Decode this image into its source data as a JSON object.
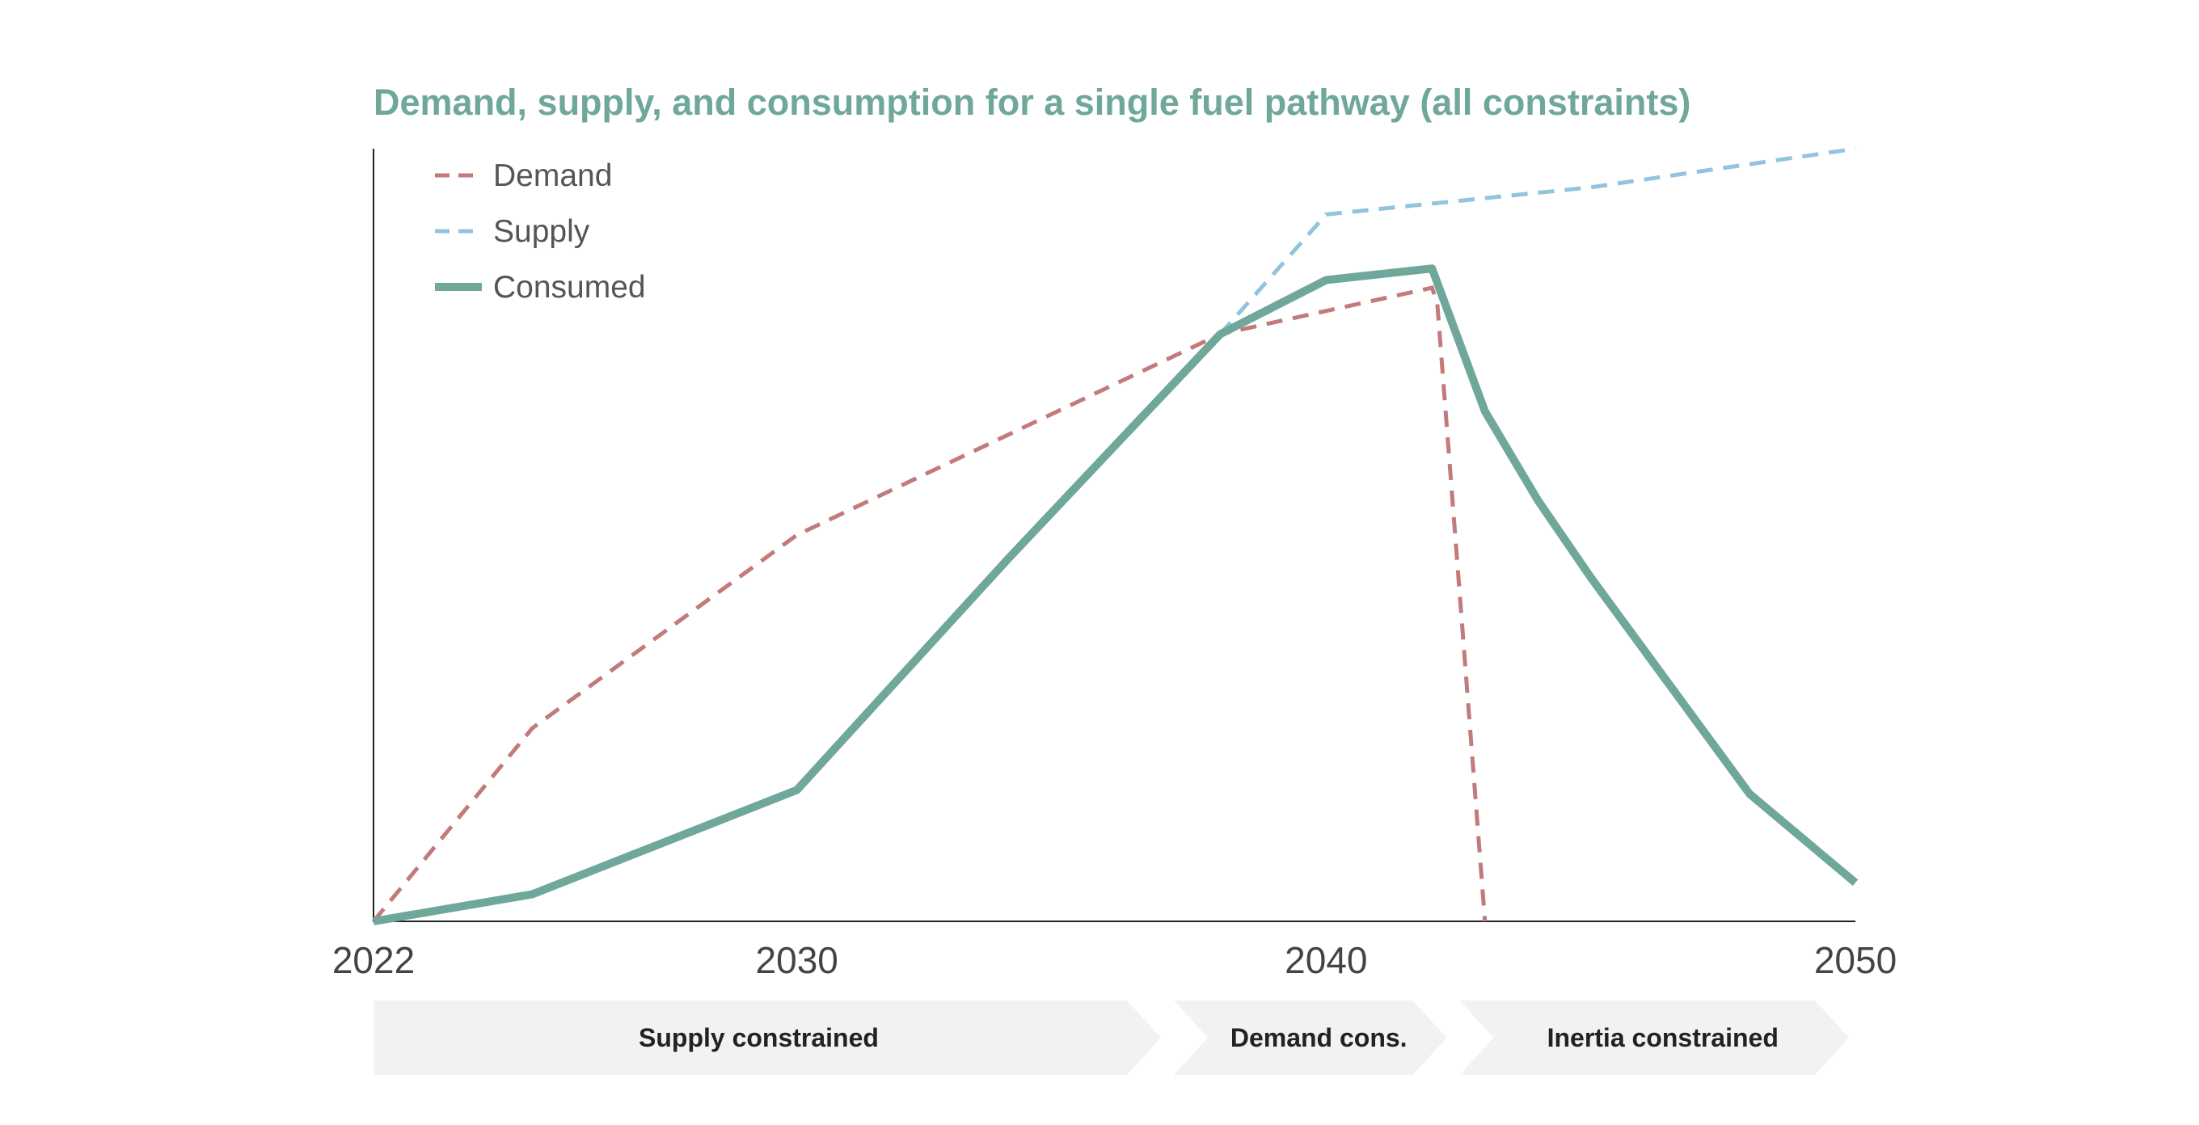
{
  "chart_data": {
    "type": "line",
    "title": "Demand, supply, and consumption for a single fuel pathway (all constraints)",
    "xlabel": "",
    "ylabel": "",
    "xlim": [
      2022,
      2050
    ],
    "ylim": [
      0,
      100
    ],
    "x_ticks": [
      "2022",
      "2030",
      "2040",
      "2050"
    ],
    "grid": false,
    "legend_position": "top-left",
    "series": [
      {
        "name": "Demand",
        "style": "dashed",
        "color": "#c27a7a",
        "points": [
          [
            2022,
            0
          ],
          [
            2025,
            25
          ],
          [
            2030,
            50
          ],
          [
            2038,
            76
          ],
          [
            2042,
            82
          ],
          [
            2042.1,
            80
          ],
          [
            2043,
            0
          ]
        ]
      },
      {
        "name": "Supply",
        "style": "dashed",
        "color": "#92c3df",
        "points": [
          [
            2022,
            0
          ],
          [
            2025,
            3.5
          ],
          [
            2030,
            17
          ],
          [
            2034,
            47
          ],
          [
            2038,
            76
          ],
          [
            2040,
            91.5
          ],
          [
            2045,
            95
          ],
          [
            2050,
            100
          ]
        ]
      },
      {
        "name": "Consumed",
        "style": "solid",
        "color": "#6fa89b",
        "points": [
          [
            2022,
            0
          ],
          [
            2025,
            3.5
          ],
          [
            2030,
            17
          ],
          [
            2034,
            47
          ],
          [
            2038,
            76
          ],
          [
            2040,
            83
          ],
          [
            2042,
            84.5
          ],
          [
            2043,
            66
          ],
          [
            2044,
            54.5
          ],
          [
            2045,
            44.5
          ],
          [
            2048,
            16.5
          ],
          [
            2050,
            5
          ]
        ]
      }
    ],
    "phases": [
      {
        "label": "Supply constrained",
        "start": 2022,
        "end": 2037
      },
      {
        "label": "Demand cons.",
        "start": 2037,
        "end": 2042.4
      },
      {
        "label": "Inertia constrained",
        "start": 2042.4,
        "end": 2050
      }
    ]
  }
}
